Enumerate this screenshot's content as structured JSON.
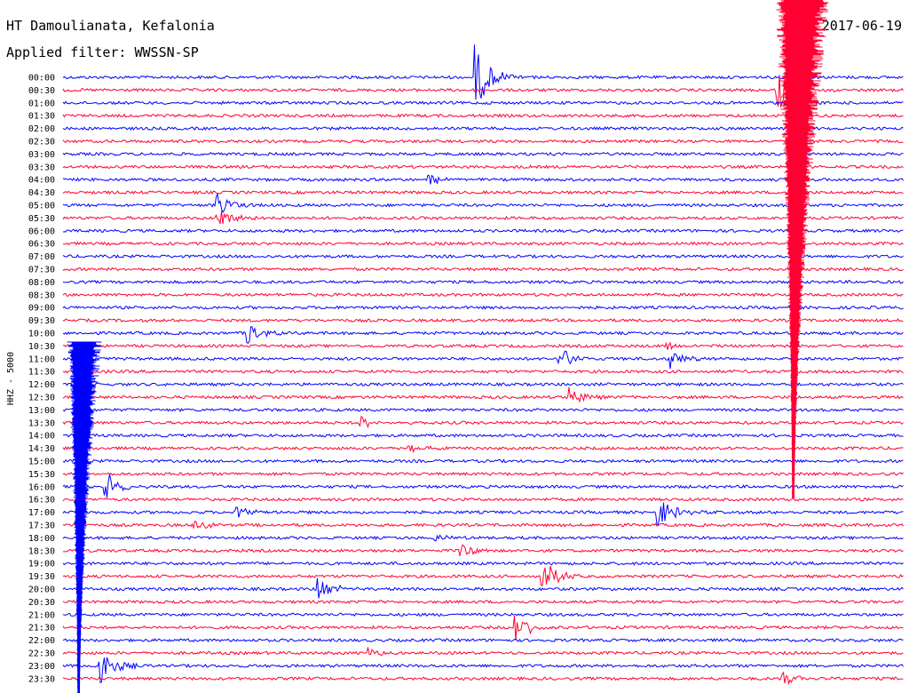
{
  "header": {
    "station": "HT Damoulianata, Kefalonia",
    "date": "2017-06-19",
    "filter": "Applied filter: WWSSN-SP"
  },
  "colors": {
    "trace_a": "#0000ff",
    "trace_b": "#ff0033"
  },
  "chart_data": {
    "type": "line",
    "title": "HT Damoulianata, Kefalonia",
    "subtitle": "Applied filter: WWSSN-SP",
    "ylabel": "HHZ - 5000",
    "row_labels": [
      "00:00",
      "00:30",
      "01:00",
      "01:30",
      "02:00",
      "02:30",
      "03:00",
      "03:30",
      "04:00",
      "04:30",
      "05:00",
      "05:30",
      "06:00",
      "06:30",
      "07:00",
      "07:30",
      "08:00",
      "08:30",
      "09:00",
      "09:30",
      "10:00",
      "10:30",
      "11:00",
      "11:30",
      "12:00",
      "12:30",
      "13:00",
      "13:30",
      "14:00",
      "14:30",
      "15:00",
      "15:30",
      "16:00",
      "16:30",
      "17:00",
      "17:30",
      "18:00",
      "18:30",
      "19:00",
      "19:30",
      "20:00",
      "20:30",
      "21:00",
      "21:30",
      "22:00",
      "22:30",
      "23:00",
      "23:30"
    ],
    "row_minutes": 30,
    "events": [
      {
        "row": 0,
        "minute": 14.7,
        "amplitude": 40
      },
      {
        "row": 1,
        "minute": 25.5,
        "amplitude": 30
      },
      {
        "row": 8,
        "minute": 13.0,
        "amplitude": 8
      },
      {
        "row": 10,
        "minute": 5.5,
        "amplitude": 15
      },
      {
        "row": 11,
        "minute": 5.5,
        "amplitude": 18
      },
      {
        "row": 20,
        "minute": 6.6,
        "amplitude": 14
      },
      {
        "row": 22,
        "minute": 17.7,
        "amplitude": 16
      },
      {
        "row": 21,
        "minute": 21.5,
        "amplitude": 6
      },
      {
        "row": 22,
        "minute": 21.7,
        "amplitude": 12
      },
      {
        "row": 25,
        "minute": 18.1,
        "amplitude": 12
      },
      {
        "row": 27,
        "minute": 10.6,
        "amplitude": 10
      },
      {
        "row": 29,
        "minute": 12.3,
        "amplitude": 6
      },
      {
        "row": 32,
        "minute": 1.5,
        "amplitude": 20
      },
      {
        "row": 34,
        "minute": 21.2,
        "amplitude": 20
      },
      {
        "row": 34,
        "minute": 6.2,
        "amplitude": 8
      },
      {
        "row": 35,
        "minute": 4.7,
        "amplitude": 6
      },
      {
        "row": 36,
        "minute": 13.3,
        "amplitude": 5
      },
      {
        "row": 37,
        "minute": 14.2,
        "amplitude": 8
      },
      {
        "row": 39,
        "minute": 17.1,
        "amplitude": 22
      },
      {
        "row": 40,
        "minute": 9.1,
        "amplitude": 14
      },
      {
        "row": 43,
        "minute": 16.1,
        "amplitude": 22
      },
      {
        "row": 45,
        "minute": 10.9,
        "amplitude": 6
      },
      {
        "row": 46,
        "minute": 1.3,
        "amplitude": 26
      },
      {
        "row": 47,
        "minute": 25.7,
        "amplitude": 8
      }
    ]
  }
}
